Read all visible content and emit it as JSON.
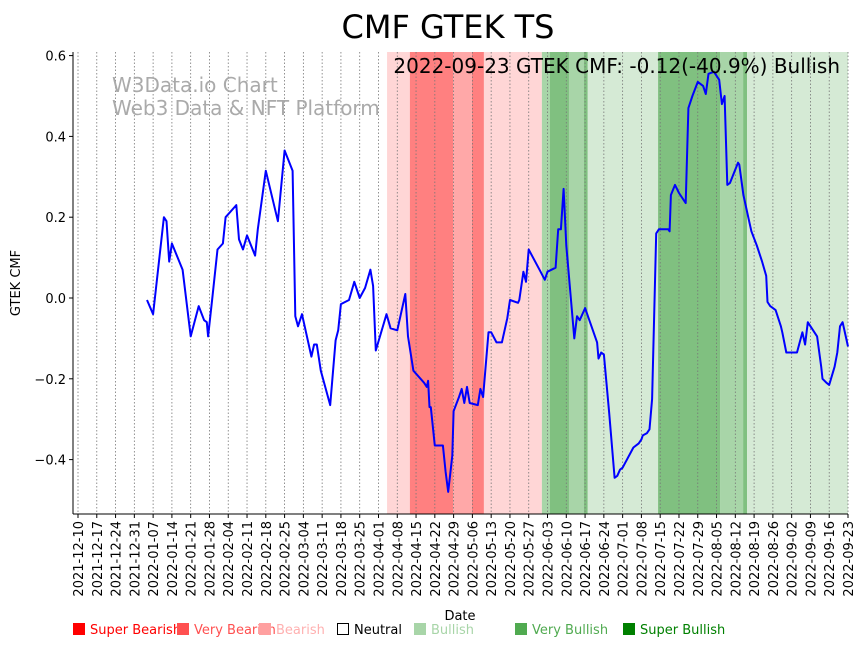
{
  "chart_data": {
    "type": "line",
    "title": "CMF GTEK TS",
    "annotation": "2022-09-23 GTEK CMF: -0.12(-40.9%) Bullish",
    "watermark": [
      "W3Data.io Chart",
      "Web3 Data & NFT Platform"
    ],
    "xlabel": "Date",
    "ylabel": "GTEK CMF",
    "ylim": [
      -0.53,
      0.61
    ],
    "yticks": [
      0.6,
      0.4,
      0.2,
      0.0,
      -0.2,
      -0.4
    ],
    "x_origin_date": "2021-12-10",
    "x_unit": "days since origin",
    "xlim": [
      -2,
      287
    ],
    "xtick_labels": [
      "2021-12-10",
      "2021-12-17",
      "2021-12-24",
      "2021-12-31",
      "2022-01-07",
      "2022-01-14",
      "2022-01-21",
      "2022-01-28",
      "2022-02-04",
      "2022-02-11",
      "2022-02-18",
      "2022-02-25",
      "2022-03-04",
      "2022-03-11",
      "2022-03-18",
      "2022-03-25",
      "2022-04-01",
      "2022-04-08",
      "2022-04-15",
      "2022-04-22",
      "2022-04-29",
      "2022-05-06",
      "2022-05-13",
      "2022-05-20",
      "2022-05-27",
      "2022-06-03",
      "2022-06-10",
      "2022-06-17",
      "2022-06-24",
      "2022-07-01",
      "2022-07-08",
      "2022-07-15",
      "2022-07-22",
      "2022-07-29",
      "2022-08-05",
      "2022-08-12",
      "2022-08-19",
      "2022-08-26",
      "2022-09-02",
      "2022-09-09",
      "2022-09-16",
      "2022-09-23"
    ],
    "grid": "vertical dotted",
    "series": [
      {
        "name": "GTEK CMF",
        "color": "#0000ff",
        "points": [
          [
            25.7,
            -0.005
          ],
          [
            28,
            -0.04
          ],
          [
            32,
            0.2
          ],
          [
            33,
            0.19
          ],
          [
            34,
            0.09
          ],
          [
            35,
            0.135
          ],
          [
            39,
            0.07
          ],
          [
            42,
            -0.095
          ],
          [
            45,
            -0.02
          ],
          [
            47,
            -0.055
          ],
          [
            48,
            -0.06
          ],
          [
            48.5,
            -0.095
          ],
          [
            50,
            -0.005
          ],
          [
            52,
            0.12
          ],
          [
            54,
            0.135
          ],
          [
            55,
            0.2
          ],
          [
            59,
            0.23
          ],
          [
            60,
            0.145
          ],
          [
            61.5,
            0.12
          ],
          [
            63,
            0.155
          ],
          [
            66,
            0.105
          ],
          [
            67,
            0.17
          ],
          [
            70,
            0.315
          ],
          [
            74.5,
            0.19
          ],
          [
            77,
            0.365
          ],
          [
            80,
            0.315
          ],
          [
            81,
            -0.045
          ],
          [
            82,
            -0.07
          ],
          [
            83.5,
            -0.04
          ],
          [
            87,
            -0.145
          ],
          [
            88,
            -0.115
          ],
          [
            89,
            -0.115
          ],
          [
            90.5,
            -0.18
          ],
          [
            94,
            -0.265
          ],
          [
            96,
            -0.105
          ],
          [
            97,
            -0.08
          ],
          [
            98,
            -0.015
          ],
          [
            101,
            -0.005
          ],
          [
            103,
            0.04
          ],
          [
            105,
            0.0
          ],
          [
            107,
            0.025
          ],
          [
            109,
            0.07
          ],
          [
            110,
            0.03
          ],
          [
            111,
            -0.13
          ],
          [
            115,
            -0.04
          ],
          [
            116.5,
            -0.075
          ],
          [
            119,
            -0.08
          ],
          [
            122,
            0.01
          ],
          [
            123,
            -0.095
          ],
          [
            125,
            -0.18
          ],
          [
            129,
            -0.21
          ],
          [
            130,
            -0.22
          ],
          [
            130.5,
            -0.205
          ],
          [
            131,
            -0.27
          ],
          [
            131.5,
            -0.27
          ],
          [
            133,
            -0.365
          ],
          [
            136,
            -0.365
          ],
          [
            137,
            -0.43
          ],
          [
            138,
            -0.48
          ],
          [
            139.5,
            -0.39
          ],
          [
            140,
            -0.28
          ],
          [
            142,
            -0.245
          ],
          [
            143,
            -0.225
          ],
          [
            144,
            -0.26
          ],
          [
            145,
            -0.22
          ],
          [
            146,
            -0.26
          ],
          [
            149,
            -0.265
          ],
          [
            150,
            -0.225
          ],
          [
            151,
            -0.245
          ],
          [
            153,
            -0.085
          ],
          [
            154,
            -0.085
          ],
          [
            156,
            -0.11
          ],
          [
            158,
            -0.11
          ],
          [
            160,
            -0.05
          ],
          [
            161,
            -0.005
          ],
          [
            164,
            -0.012
          ],
          [
            164.5,
            -0.005
          ],
          [
            166,
            0.065
          ],
          [
            167,
            0.04
          ],
          [
            168,
            0.12
          ],
          [
            172,
            0.07
          ],
          [
            174,
            0.045
          ],
          [
            175,
            0.065
          ],
          [
            178,
            0.075
          ],
          [
            179,
            0.17
          ],
          [
            180,
            0.17
          ],
          [
            181,
            0.27
          ],
          [
            182,
            0.13
          ],
          [
            185,
            -0.1
          ],
          [
            186,
            -0.045
          ],
          [
            187,
            -0.055
          ],
          [
            189,
            -0.025
          ],
          [
            193.5,
            -0.11
          ],
          [
            194,
            -0.15
          ],
          [
            195,
            -0.135
          ],
          [
            196,
            -0.14
          ],
          [
            198,
            -0.285
          ],
          [
            200,
            -0.445
          ],
          [
            201,
            -0.44
          ],
          [
            202,
            -0.425
          ],
          [
            203,
            -0.42
          ],
          [
            207,
            -0.37
          ],
          [
            209,
            -0.36
          ],
          [
            210,
            -0.35
          ],
          [
            210.5,
            -0.34
          ],
          [
            212,
            -0.335
          ],
          [
            213,
            -0.325
          ],
          [
            214,
            -0.25
          ],
          [
            215.5,
            0.16
          ],
          [
            216.5,
            0.17
          ],
          [
            220,
            0.17
          ],
          [
            220.5,
            0.165
          ],
          [
            221,
            0.255
          ],
          [
            222.5,
            0.28
          ],
          [
            224,
            0.26
          ],
          [
            226.5,
            0.235
          ],
          [
            227.5,
            0.47
          ],
          [
            229,
            0.5
          ],
          [
            231,
            0.535
          ],
          [
            233,
            0.525
          ],
          [
            234,
            0.505
          ],
          [
            235,
            0.555
          ],
          [
            237,
            0.56
          ],
          [
            239,
            0.54
          ],
          [
            240,
            0.48
          ],
          [
            241,
            0.5
          ],
          [
            242,
            0.28
          ],
          [
            243,
            0.285
          ],
          [
            246,
            0.335
          ],
          [
            246.5,
            0.33
          ],
          [
            248,
            0.255
          ],
          [
            250,
            0.195
          ],
          [
            251,
            0.165
          ],
          [
            253,
            0.13
          ],
          [
            255,
            0.09
          ],
          [
            256.5,
            0.055
          ],
          [
            257,
            -0.01
          ],
          [
            258,
            -0.02
          ],
          [
            260,
            -0.03
          ],
          [
            262,
            -0.07
          ],
          [
            262.5,
            -0.085
          ],
          [
            264,
            -0.135
          ],
          [
            267,
            -0.135
          ],
          [
            268,
            -0.135
          ],
          [
            270,
            -0.085
          ],
          [
            271,
            -0.115
          ],
          [
            272,
            -0.06
          ],
          [
            275.5,
            -0.095
          ],
          [
            277,
            -0.17
          ],
          [
            277.5,
            -0.2
          ],
          [
            279,
            -0.21
          ],
          [
            280,
            -0.215
          ],
          [
            282,
            -0.17
          ],
          [
            283,
            -0.135
          ],
          [
            284,
            -0.07
          ],
          [
            285,
            -0.06
          ],
          [
            287,
            -0.12
          ]
        ]
      }
    ],
    "bands": [
      {
        "from": 115.2,
        "to": 123.7,
        "level": "Bearish",
        "color": "#ffd6d6"
      },
      {
        "from": 123.7,
        "to": 139.8,
        "level": "Very Bearish",
        "color": "#ff8080"
      },
      {
        "from": 139.8,
        "to": 146.8,
        "level": "Bearish-mid",
        "color": "#ffa8a8"
      },
      {
        "from": 146.8,
        "to": 151.3,
        "level": "Very Bearish",
        "color": "#ff8080"
      },
      {
        "from": 151.3,
        "to": 172.9,
        "level": "Bearish",
        "color": "#ffd6d6"
      },
      {
        "from": 172.9,
        "to": 175.9,
        "level": "Bullish-mid",
        "color": "#a8d5a8"
      },
      {
        "from": 175.9,
        "to": 183,
        "level": "Very Bullish",
        "color": "#80c080"
      },
      {
        "from": 183,
        "to": 188.5,
        "level": "Bullish-mid",
        "color": "#a8d5a8"
      },
      {
        "from": 188.5,
        "to": 190,
        "level": "Very Bullish",
        "color": "#80c080"
      },
      {
        "from": 190,
        "to": 216.2,
        "level": "Bullish",
        "color": "#d5ead5"
      },
      {
        "from": 216.2,
        "to": 239.3,
        "level": "Very Bullish",
        "color": "#80c080"
      },
      {
        "from": 239.3,
        "to": 247.9,
        "level": "Bullish-mid",
        "color": "#a8d5a8"
      },
      {
        "from": 247.9,
        "to": 249.4,
        "level": "Very Bullish",
        "color": "#80c080"
      },
      {
        "from": 249.4,
        "to": 287,
        "level": "Bullish",
        "color": "#d5ead5"
      }
    ],
    "legend": {
      "placement": "bottom",
      "items": [
        {
          "label": "Super Bearish",
          "color": "#ff0000",
          "text_color": "#ff0000"
        },
        {
          "label": "Very Bearish",
          "color": "#ff5050",
          "text_color": "#ff5050"
        },
        {
          "label": "Bearish",
          "color": "#ffa0a0",
          "text_color": "#ffb0b0"
        },
        {
          "label": "Neutral",
          "color": "none",
          "text_color": "#000000"
        },
        {
          "label": "Bullish",
          "color": "#a8d5a8",
          "text_color": "#a8d5a8"
        },
        {
          "label": "Very Bullish",
          "color": "#50aa50",
          "text_color": "#50aa50"
        },
        {
          "label": "Super Bullish",
          "color": "#008000",
          "text_color": "#008000"
        }
      ]
    }
  }
}
